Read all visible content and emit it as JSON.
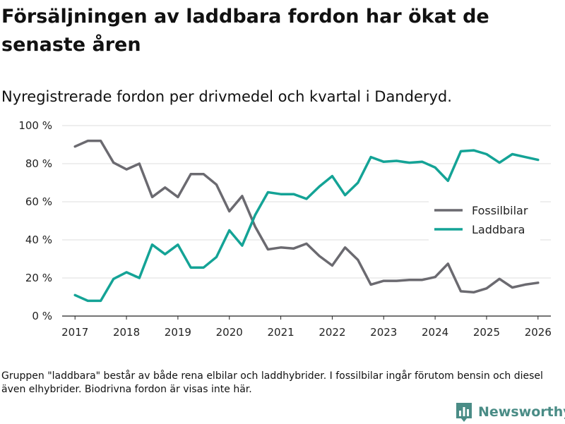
{
  "header": {
    "title": "Försäljningen av laddbara fordon har ökat de senaste åren",
    "subtitle": "Nyregistrerade fordon per drivmedel och kvartal i Danderyd."
  },
  "footer": {
    "note": "Gruppen \"laddbara\" består av både rena elbilar och laddhybrider. I fossilbilar ingår förutom bensin och diesel även elhybrider. Biodrivna fordon är visas inte här.",
    "brand": "Newsworthy"
  },
  "colors": {
    "fossil": "#6b6a70",
    "laddbara": "#14a396",
    "grid": "#dddddd",
    "brand": "#4a8c86"
  },
  "chart_data": {
    "type": "line",
    "title": "",
    "xlabel": "",
    "ylabel": "",
    "ylim": [
      0,
      100
    ],
    "xlim": [
      2016.75,
      2026.25
    ],
    "y_ticks": [
      0,
      20,
      40,
      60,
      80,
      100
    ],
    "y_tick_labels": [
      "0 %",
      "20 %",
      "40 %",
      "60 %",
      "80 %",
      "100 %"
    ],
    "x_ticks": [
      2017,
      2018,
      2019,
      2020,
      2021,
      2022,
      2023,
      2024,
      2025,
      2026
    ],
    "x_tick_labels": [
      "2017",
      "2018",
      "2019",
      "2020",
      "2021",
      "2022",
      "2023",
      "2024",
      "2025",
      "2026"
    ],
    "legend_position": "right",
    "x": [
      2017,
      2017.25,
      2017.5,
      2017.75,
      2018,
      2018.25,
      2018.5,
      2018.75,
      2019,
      2019.25,
      2019.5,
      2019.75,
      2020,
      2020.25,
      2020.5,
      2020.75,
      2021,
      2021.25,
      2021.5,
      2021.75,
      2022,
      2022.25,
      2022.5,
      2022.75,
      2023,
      2023.25,
      2023.5,
      2023.75,
      2024,
      2024.25,
      2024.5,
      2024.75,
      2025,
      2025.25,
      2025.5,
      2025.75,
      2026
    ],
    "series": [
      {
        "name": "Fossilbilar",
        "color": "#6b6a70",
        "values": [
          89,
          92,
          92,
          80.5,
          77,
          80,
          62.5,
          67.5,
          62.5,
          74.5,
          74.5,
          69,
          55,
          63,
          47,
          35,
          36,
          35.5,
          38,
          31.5,
          26.5,
          36,
          29.5,
          16.5,
          18.5,
          18.5,
          19,
          19,
          20.5,
          27.5,
          13,
          12.5,
          14.5,
          19.5,
          15,
          16.5,
          17.5
        ]
      },
      {
        "name": "Laddbara",
        "color": "#14a396",
        "values": [
          11,
          8,
          8,
          19.5,
          23,
          20,
          37.5,
          32.5,
          37.5,
          25.5,
          25.5,
          31,
          45,
          37,
          53,
          65,
          64,
          64,
          61.5,
          68,
          73.5,
          63.5,
          70,
          83.5,
          81,
          81.5,
          80.5,
          81,
          78,
          71,
          86.5,
          87,
          85,
          80.5,
          85,
          83.5,
          82
        ]
      }
    ]
  }
}
